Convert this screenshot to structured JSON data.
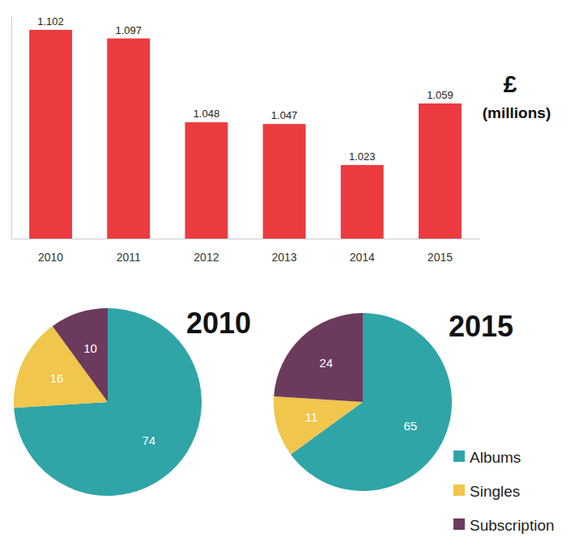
{
  "chart_data": [
    {
      "type": "bar",
      "categories": [
        "2010",
        "2011",
        "2012",
        "2013",
        "2014",
        "2015"
      ],
      "values": [
        1.102,
        1.097,
        1.048,
        1.047,
        1.023,
        1.059
      ],
      "color": "#ec3b3f",
      "ylim": [
        0.98,
        1.11
      ],
      "yticks": [],
      "tick_labels": "x",
      "data_labels": true,
      "annotations": [
        "£",
        "(millions)"
      ]
    },
    {
      "type": "pie",
      "title": "2010",
      "categories": [
        "Albums",
        "Singles",
        "Subscription"
      ],
      "values": [
        74,
        16,
        10
      ],
      "colors": [
        "#2fa5a8",
        "#f1c64c",
        "#6c3a5c"
      ],
      "data_labels": true
    },
    {
      "type": "pie",
      "title": "2015",
      "categories": [
        "Albums",
        "Singles",
        "Subscription"
      ],
      "values": [
        65,
        11,
        24
      ],
      "colors": [
        "#2fa5a8",
        "#f1c64c",
        "#6c3a5c"
      ],
      "data_labels": true,
      "legend": "bottom right"
    }
  ]
}
